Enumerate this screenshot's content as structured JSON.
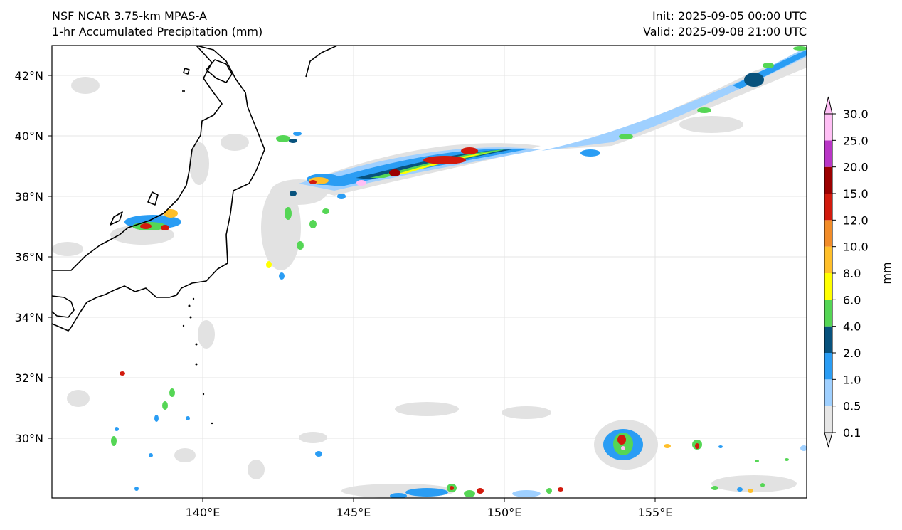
{
  "header": {
    "title_line1": "NSF NCAR 3.75-km MPAS-A",
    "title_line2": "1-hr Accumulated Precipitation (mm)",
    "init": "Init: 2025-09-05 00:00 UTC",
    "valid": "Valid: 2025-09-08 21:00 UTC"
  },
  "map": {
    "lat_labels": [
      "42°N",
      "40°N",
      "38°N",
      "36°N",
      "34°N",
      "32°N",
      "30°N"
    ],
    "lon_labels": [
      "140°E",
      "145°E",
      "150°E",
      "155°E"
    ],
    "lon_range": [
      135,
      160
    ],
    "lat_range": [
      28,
      43
    ]
  },
  "colorbar": {
    "unit": "mm",
    "levels": [
      "0.1",
      "0.5",
      "1.0",
      "2.0",
      "4.0",
      "6.0",
      "8.0",
      "10.0",
      "12.0",
      "15.0",
      "20.0",
      "25.0",
      "30.0"
    ],
    "colors": [
      "#e6e6e6",
      "#9fd0ff",
      "#2a9df4",
      "#08527d",
      "#55d655",
      "#ffff00",
      "#ffbf2a",
      "#f28c28",
      "#d21a0d",
      "#9b0000",
      "#b935c6",
      "#ffbff5"
    ]
  }
}
